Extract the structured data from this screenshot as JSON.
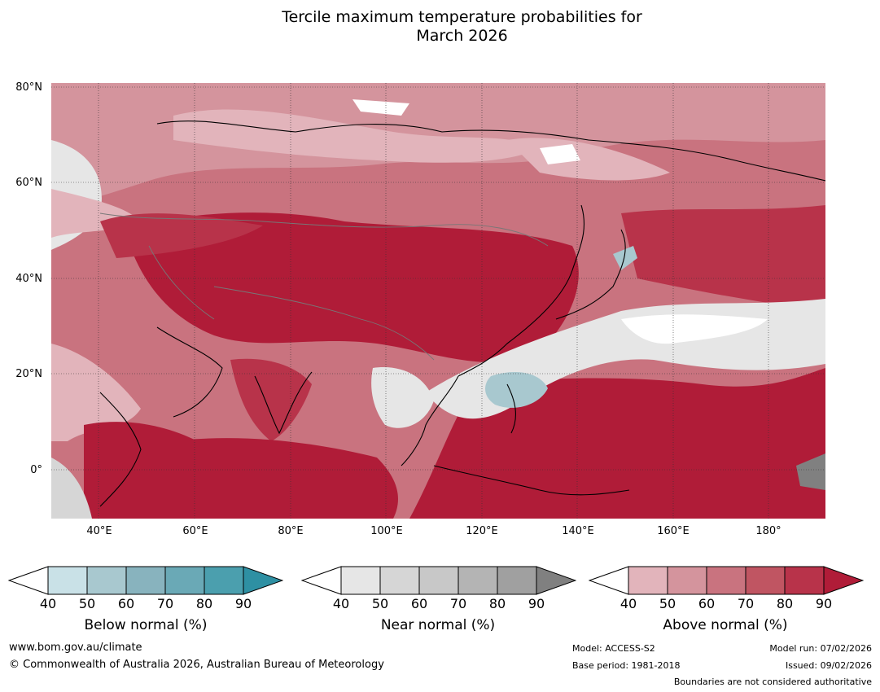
{
  "title_line1": "Tercile maximum temperature probabilities for",
  "title_line2": "March 2026",
  "map": {
    "lat_labels": [
      "80°N",
      "60°N",
      "40°N",
      "20°N",
      "0°"
    ],
    "lon_labels": [
      "40°E",
      "60°E",
      "80°E",
      "100°E",
      "120°E",
      "140°E",
      "160°E",
      "180°"
    ],
    "lon_range": [
      30,
      192
    ],
    "lat_range": [
      -10,
      81
    ]
  },
  "colorbars": [
    {
      "name": "Below normal (%)",
      "ticks": [
        "40",
        "50",
        "60",
        "70",
        "80",
        "90"
      ],
      "colors": [
        "#c9e1e7",
        "#a8c8cf",
        "#88b3be",
        "#6aa9b6",
        "#4b9fae",
        "#2e90a3"
      ]
    },
    {
      "name": "Near normal (%)",
      "ticks": [
        "40",
        "50",
        "60",
        "70",
        "80",
        "90"
      ],
      "colors": [
        "#e6e6e6",
        "#d6d6d6",
        "#c8c8c8",
        "#b4b4b4",
        "#a0a0a0",
        "#808080"
      ]
    },
    {
      "name": "Above normal (%)",
      "ticks": [
        "40",
        "50",
        "60",
        "70",
        "80",
        "90"
      ],
      "colors": [
        "#e2b4bb",
        "#d4949d",
        "#c9737f",
        "#c05562",
        "#b8334a",
        "#b01c38"
      ]
    }
  ],
  "footer": {
    "url": "www.bom.gov.au/climate",
    "copyright": "© Commonwealth of Australia 2026, Australian Bureau of Meteorology",
    "model": "Model: ACCESS-S2",
    "base_period": "Base period: 1981-2018",
    "model_run": "Model run: 07/02/2026",
    "issued": "Issued: 09/02/2026",
    "disclaimer": "Boundaries are not considered authoritative"
  }
}
